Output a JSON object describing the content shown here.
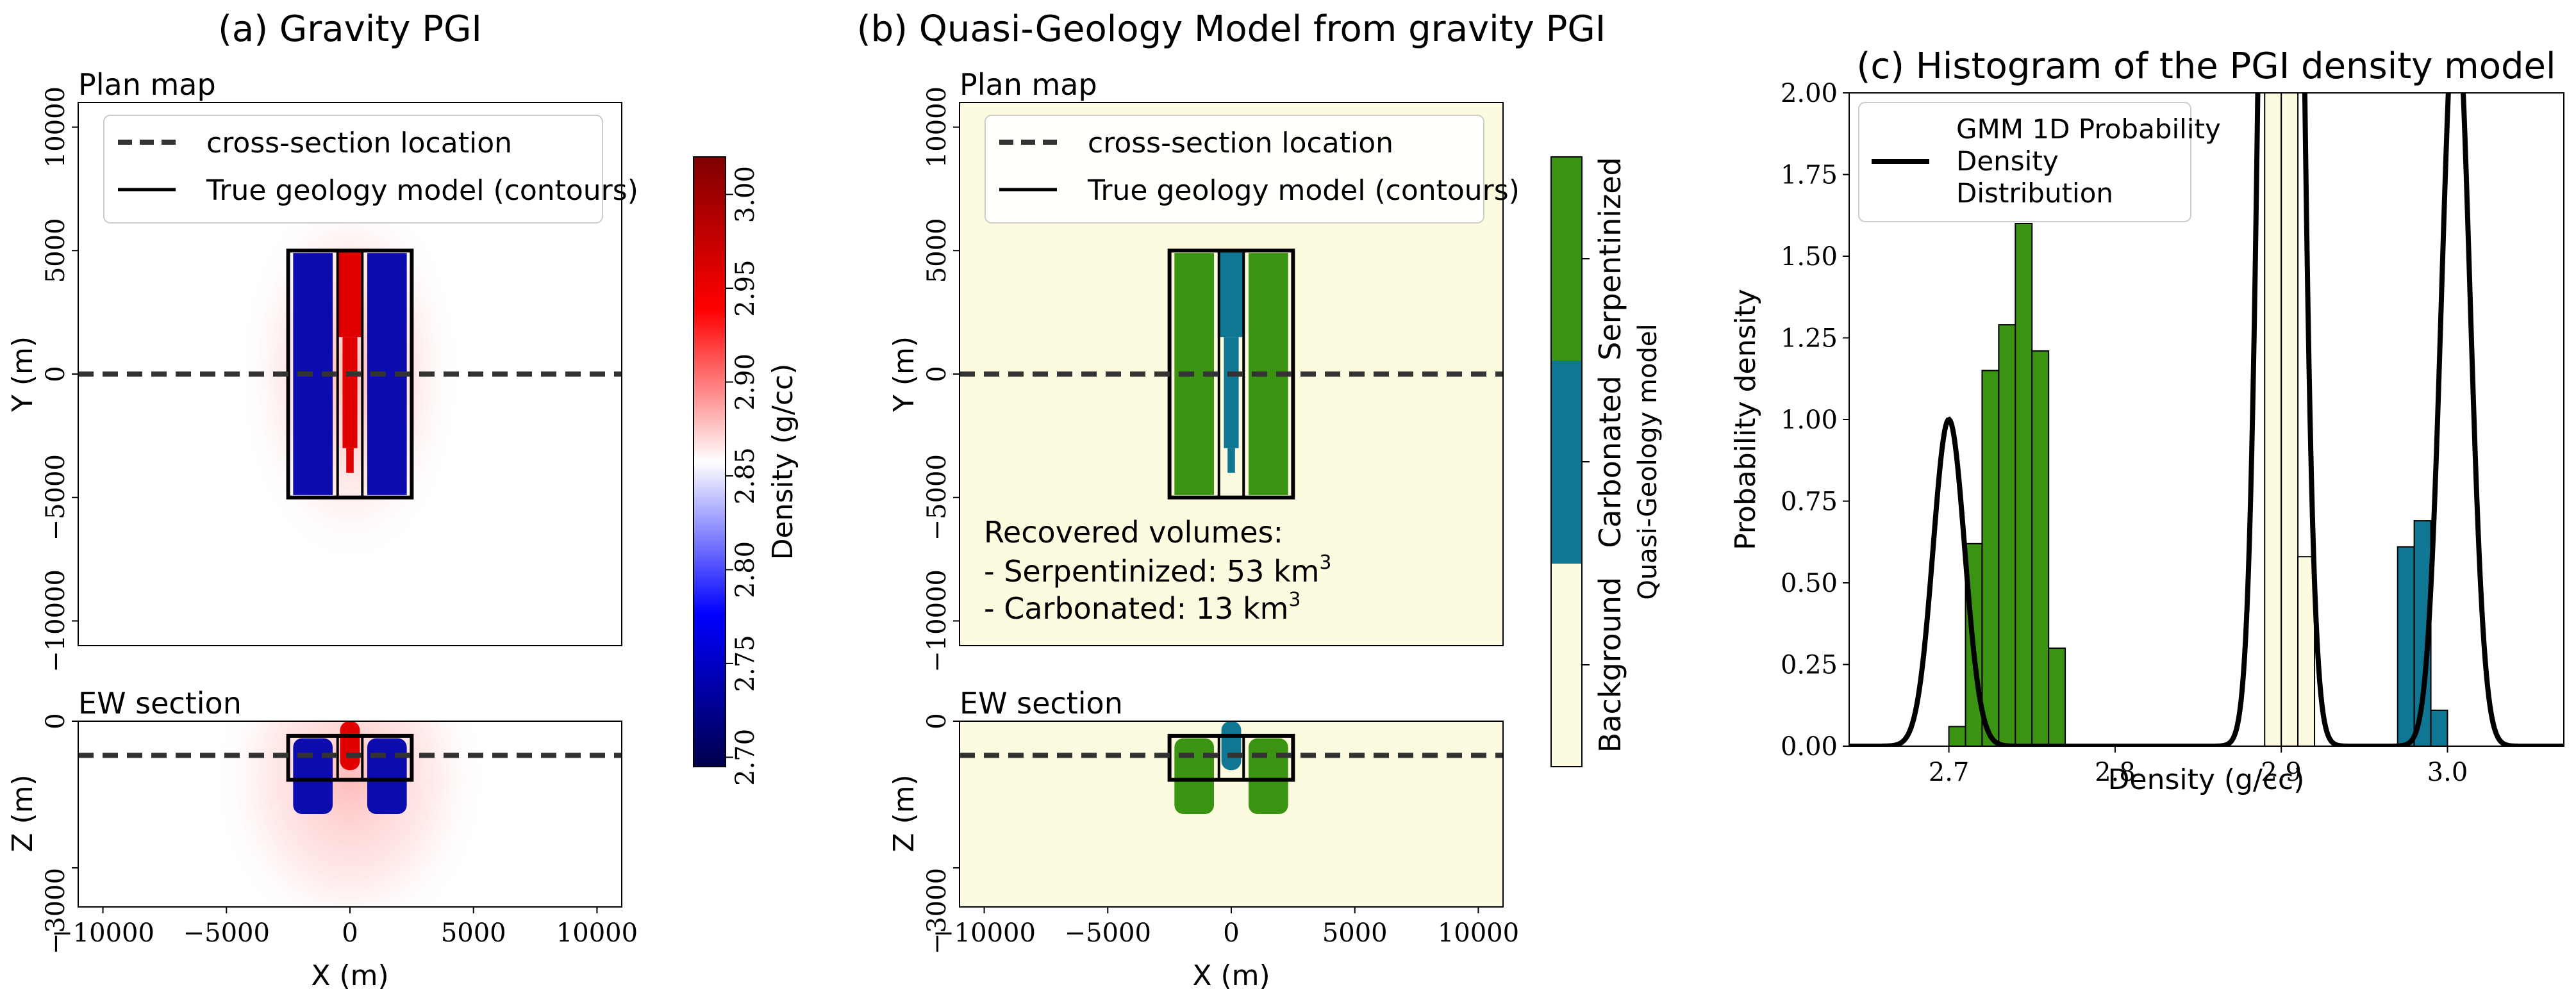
{
  "colors": {
    "density_low": "#00004c",
    "density_mid": "#ffffff",
    "density_high": "#7f0000",
    "serpentinized": "#3a9311",
    "carbonated": "#0f7694",
    "background": "#fcfbe0",
    "line": "#000000",
    "dash": "#333333"
  },
  "chart_data": [
    {
      "type": "heatmap",
      "title": "(a) Gravity PGI",
      "plan": {
        "title": "Plan map",
        "xlim": [
          -11000,
          11000
        ],
        "ylim": [
          -11000,
          11000
        ],
        "xticks": [
          -10000,
          -5000,
          0,
          5000,
          10000
        ],
        "xtick_labels": [
          "−10000",
          "−5000",
          "0",
          "5000",
          "10000"
        ],
        "yticks": [
          -10000,
          -5000,
          0,
          5000,
          10000
        ],
        "ytick_labels": [
          "−10000",
          "−5000",
          "0",
          "5000",
          "10000"
        ],
        "ylabel": "Y (m)",
        "cross_section_y": 0,
        "contour_rect": [
          -2500,
          -5000,
          2500,
          5000
        ],
        "inner_rect": [
          -500,
          -5000,
          500,
          5000
        ],
        "blocks": [
          {
            "unit": "serpentinized",
            "density": 2.7,
            "x": [
              -2300,
              -700
            ],
            "y": [
              -4900,
              4900
            ]
          },
          {
            "unit": "serpentinized",
            "density": 2.7,
            "x": [
              700,
              2300
            ],
            "y": [
              -4900,
              4900
            ]
          },
          {
            "unit": "carbonated",
            "density": 3.0,
            "x": [
              -500,
              500
            ],
            "y": [
              1500,
              5000
            ]
          },
          {
            "unit": "carbonated",
            "density": 3.0,
            "x": [
              -300,
              300
            ],
            "y": [
              -3000,
              1500
            ]
          },
          {
            "unit": "carbonated",
            "density": 3.0,
            "x": [
              -150,
              150
            ],
            "y": [
              -4000,
              -3000
            ]
          }
        ],
        "legend": [
          "cross-section location",
          "True geology model (contours)"
        ]
      },
      "section": {
        "title": "EW section",
        "xlim": [
          -11000,
          11000
        ],
        "ylim": [
          -3800,
          0
        ],
        "xticks": [
          -10000,
          -5000,
          0,
          5000,
          10000
        ],
        "xtick_labels": [
          "−10000",
          "−5000",
          "0",
          "5000",
          "10000"
        ],
        "yticks": [
          0,
          -3000
        ],
        "ytick_labels": [
          "0",
          "−3000"
        ],
        "xlabel": "X (m)",
        "ylabel": "Z (m)",
        "dashed_z": -700,
        "contour_rect_upper": [
          -2500,
          -1200,
          2500,
          -300
        ],
        "contour_rect_lower": [
          -2500,
          -1200,
          2500,
          -1700
        ],
        "inner_rect": [
          -500,
          -1200,
          500,
          -300
        ],
        "blocks": [
          {
            "unit": "carbonated",
            "density": 3.0,
            "x": [
              -400,
              400
            ],
            "y": [
              -1000,
              0
            ]
          },
          {
            "unit": "serpentinized",
            "density": 2.7,
            "x": [
              -2300,
              -700
            ],
            "y": [
              -1900,
              -350
            ]
          },
          {
            "unit": "serpentinized",
            "density": 2.7,
            "x": [
              700,
              2300
            ],
            "y": [
              -1900,
              -350
            ]
          }
        ]
      },
      "colorbar": {
        "label": "Density (g/cc)",
        "range": [
          2.695,
          3.02
        ],
        "ticks": [
          2.7,
          2.75,
          2.8,
          2.85,
          2.9,
          2.95,
          3.0
        ],
        "tick_labels": [
          "2.70",
          "2.75",
          "2.80",
          "2.85",
          "2.90",
          "2.95",
          "3.00"
        ]
      }
    },
    {
      "type": "heatmap",
      "title": "(b) Quasi-Geology Model from gravity PGI",
      "plan": {
        "title": "Plan map",
        "legend": [
          "cross-section location",
          "True geology model (contours)"
        ],
        "annotation": {
          "heading": "Recovered volumes:",
          "line1_prefix": "- Serpentinized: 53 km",
          "line1_sup": "3",
          "line2_prefix": "- Carbonated: 13 km",
          "line2_sup": "3"
        }
      },
      "section": {
        "title": "EW section",
        "xlabel": "X (m)"
      },
      "colorbar": {
        "label": "Quasi-Geology model",
        "categories": [
          "Background",
          "Carbonated",
          "Serpentinized"
        ]
      }
    },
    {
      "type": "bar",
      "title": "(c) Histogram of the PGI density model",
      "xlabel": "Density (g/cc)",
      "ylabel": "Probability density",
      "xlim": [
        2.64,
        3.07
      ],
      "ylim": [
        0,
        2.0
      ],
      "xticks": [
        2.7,
        2.8,
        2.9,
        3.0
      ],
      "xtick_labels": [
        "2.7",
        "2.8",
        "2.9",
        "3.0"
      ],
      "yticks": [
        0,
        0.25,
        0.5,
        0.75,
        1.0,
        1.25,
        1.5,
        1.75,
        2.0
      ],
      "ytick_labels": [
        "0.00",
        "0.25",
        "0.50",
        "0.75",
        "1.00",
        "1.25",
        "1.50",
        "1.75",
        "2.00"
      ],
      "bin_width": 0.01,
      "bins": [
        {
          "x0": 2.7,
          "value": 0.06,
          "unit": "serpentinized"
        },
        {
          "x0": 2.71,
          "value": 0.62,
          "unit": "serpentinized"
        },
        {
          "x0": 2.72,
          "value": 1.15,
          "unit": "serpentinized"
        },
        {
          "x0": 2.73,
          "value": 1.29,
          "unit": "serpentinized"
        },
        {
          "x0": 2.74,
          "value": 1.6,
          "unit": "serpentinized"
        },
        {
          "x0": 2.75,
          "value": 1.21,
          "unit": "serpentinized"
        },
        {
          "x0": 2.76,
          "value": 0.3,
          "unit": "serpentinized"
        },
        {
          "x0": 2.89,
          "value": 2.0,
          "unit": "background"
        },
        {
          "x0": 2.9,
          "value": 2.0,
          "unit": "background"
        },
        {
          "x0": 2.91,
          "value": 0.58,
          "unit": "background"
        },
        {
          "x0": 2.97,
          "value": 0.61,
          "unit": "carbonated"
        },
        {
          "x0": 2.98,
          "value": 0.69,
          "unit": "carbonated"
        },
        {
          "x0": 2.99,
          "value": 0.11,
          "unit": "carbonated"
        }
      ],
      "series": [
        {
          "name": "GMM 1D Probability Density Distribution",
          "components": [
            {
              "mean": 2.7,
              "sd": 0.0095,
              "peak": 1.0
            },
            {
              "mean": 2.9,
              "sd": 0.0085,
              "peak": 8.0
            },
            {
              "mean": 3.005,
              "sd": 0.0085,
              "peak": 2.3
            }
          ]
        }
      ],
      "legend_lines": [
        "GMM 1D Probability",
        "Density",
        "Distribution"
      ]
    }
  ]
}
